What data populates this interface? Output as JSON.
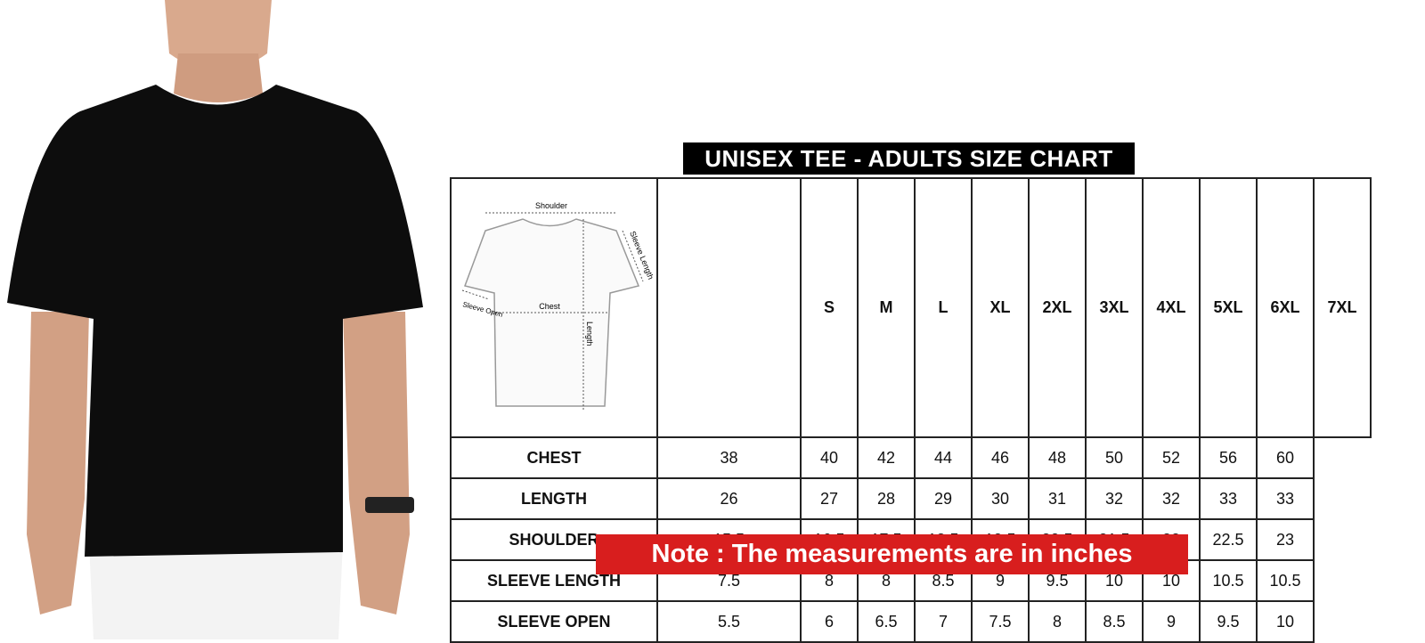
{
  "title": "UNISEX TEE - ADULTS SIZE CHART",
  "diagram": {
    "shoulder": "Shoulder",
    "sleeve_length": "Sleeve Length",
    "sleeve_open": "Sleeve Open",
    "chest": "Chest",
    "length": "Length"
  },
  "sizes": [
    "S",
    "M",
    "L",
    "XL",
    "2XL",
    "3XL",
    "4XL",
    "5XL",
    "6XL",
    "7XL"
  ],
  "rows": [
    {
      "label": "CHEST",
      "values": [
        "38",
        "40",
        "42",
        "44",
        "46",
        "48",
        "50",
        "52",
        "56",
        "60"
      ]
    },
    {
      "label": "LENGTH",
      "values": [
        "26",
        "27",
        "28",
        "29",
        "30",
        "31",
        "32",
        "32",
        "33",
        "33"
      ]
    },
    {
      "label": "SHOULDER",
      "values": [
        "15.5",
        "16.5",
        "17.5",
        "18.5",
        "19.5",
        "20.5",
        "21.5",
        "22",
        "22.5",
        "23"
      ]
    },
    {
      "label": "SLEEVE LENGTH",
      "values": [
        "7.5",
        "8",
        "8",
        "8.5",
        "9",
        "9.5",
        "10",
        "10",
        "10.5",
        "10.5"
      ]
    },
    {
      "label": "SLEEVE OPEN",
      "values": [
        "5.5",
        "6",
        "6.5",
        "7",
        "7.5",
        "8",
        "8.5",
        "9",
        "9.5",
        "10"
      ]
    }
  ],
  "note": "Note : The measurements are in inches",
  "colors": {
    "tee": "#0d0d0d",
    "note_bg": "#d81e1e",
    "title_bg": "#000000"
  }
}
